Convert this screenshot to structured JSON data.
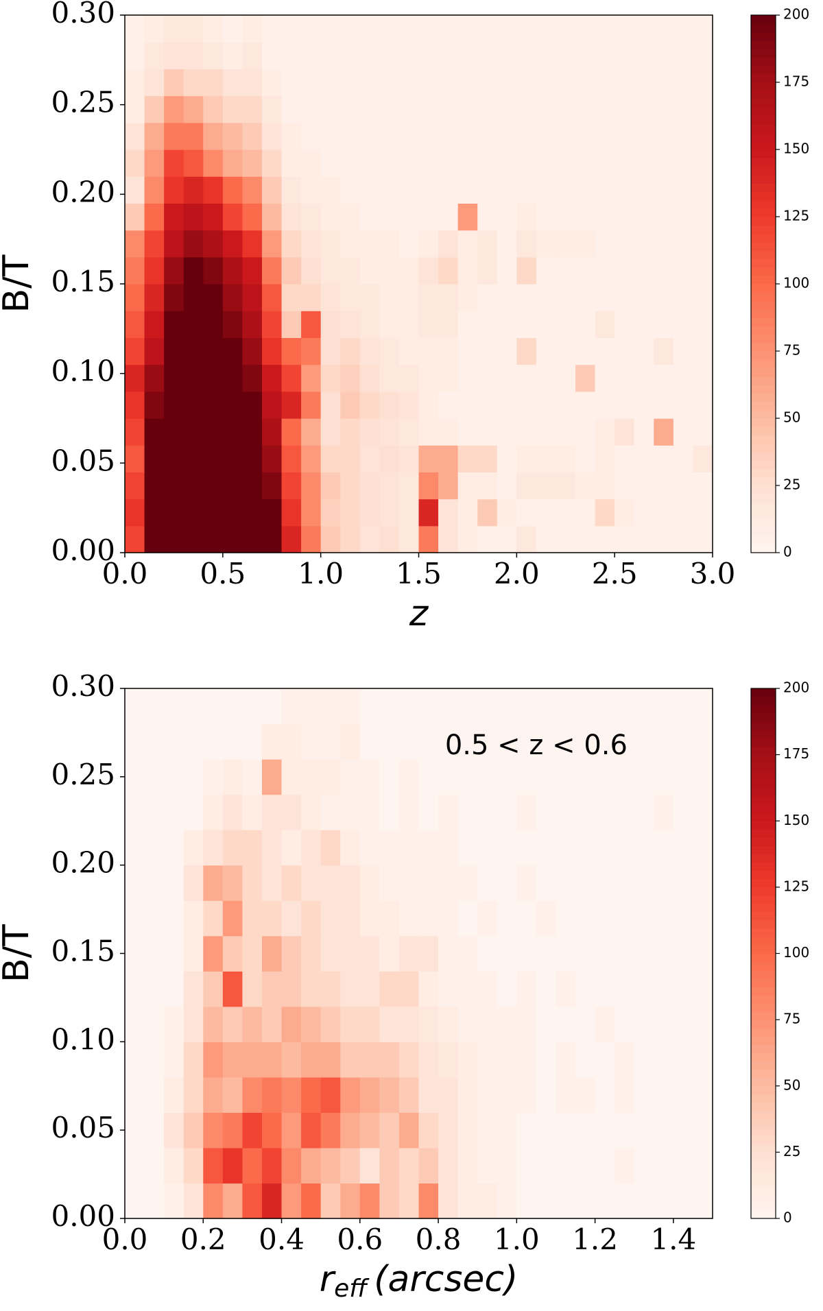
{
  "chart_data": [
    {
      "type": "heatmap",
      "xlabel": "z",
      "ylabel": "B/T",
      "xlim": [
        0.0,
        3.0
      ],
      "ylim": [
        0.0,
        0.3
      ],
      "xticks": [
        {
          "value": 0,
          "label": "0.0"
        },
        {
          "value": 0.5,
          "label": "0.5"
        },
        {
          "value": 1,
          "label": "1.0"
        },
        {
          "value": 1.5,
          "label": "1.5"
        },
        {
          "value": 2,
          "label": "2.0"
        },
        {
          "value": 2.5,
          "label": "2.5"
        },
        {
          "value": 3,
          "label": "3.0"
        }
      ],
      "yticks": [
        {
          "value": 0,
          "label": "0.00"
        },
        0.05,
        {
          "value": 0.1,
          "label": "0.10"
        },
        0.15,
        {
          "value": 0.2,
          "label": "0.20"
        },
        0.25,
        {
          "value": 0.3,
          "label": "0.30"
        }
      ],
      "clim": [
        0,
        200
      ],
      "cticks": [
        0,
        25,
        50,
        75,
        100,
        125,
        150,
        175,
        200
      ],
      "colormap": [
        "#fff5f0",
        "#fee0d2",
        "#fcbba1",
        "#fc9272",
        "#fb6a4a",
        "#ef3b2c",
        "#cb181d",
        "#a50f15",
        "#67000d"
      ],
      "z": [
        [
          120,
          200,
          200,
          200,
          200,
          200,
          200,
          200,
          140,
          90,
          40,
          30,
          20,
          25,
          15,
          90,
          20,
          10,
          5,
          5,
          15,
          5,
          5,
          5,
          5,
          5,
          5,
          5,
          5,
          5
        ],
        [
          130,
          200,
          200,
          200,
          200,
          200,
          200,
          200,
          130,
          80,
          35,
          30,
          25,
          20,
          15,
          140,
          20,
          10,
          40,
          10,
          5,
          5,
          5,
          5,
          30,
          10,
          5,
          5,
          5,
          5
        ],
        [
          120,
          200,
          200,
          200,
          200,
          200,
          200,
          190,
          120,
          80,
          40,
          30,
          25,
          20,
          15,
          80,
          60,
          10,
          10,
          5,
          15,
          15,
          15,
          10,
          10,
          5,
          5,
          5,
          5,
          5
        ],
        [
          110,
          200,
          200,
          200,
          200,
          200,
          200,
          180,
          110,
          70,
          30,
          30,
          20,
          25,
          20,
          60,
          60,
          30,
          30,
          5,
          10,
          10,
          10,
          5,
          10,
          5,
          5,
          5,
          5,
          15
        ],
        [
          120,
          200,
          200,
          200,
          200,
          200,
          200,
          170,
          100,
          60,
          25,
          30,
          25,
          20,
          15,
          10,
          10,
          5,
          5,
          5,
          5,
          5,
          5,
          5,
          10,
          20,
          5,
          60,
          5,
          5
        ],
        [
          130,
          190,
          200,
          200,
          200,
          200,
          200,
          160,
          140,
          90,
          25,
          40,
          30,
          25,
          20,
          10,
          5,
          5,
          5,
          5,
          5,
          5,
          5,
          5,
          5,
          5,
          5,
          5,
          5,
          5
        ],
        [
          140,
          180,
          200,
          200,
          200,
          200,
          190,
          150,
          120,
          70,
          30,
          35,
          25,
          15,
          15,
          10,
          10,
          5,
          5,
          5,
          5,
          5,
          5,
          40,
          5,
          5,
          5,
          5,
          5,
          5
        ],
        [
          120,
          160,
          200,
          200,
          200,
          200,
          180,
          130,
          100,
          90,
          25,
          30,
          20,
          15,
          10,
          10,
          10,
          5,
          5,
          5,
          30,
          5,
          5,
          5,
          5,
          5,
          5,
          15,
          5,
          5
        ],
        [
          110,
          150,
          200,
          200,
          200,
          190,
          170,
          120,
          40,
          110,
          25,
          20,
          15,
          10,
          10,
          15,
          15,
          5,
          5,
          5,
          5,
          5,
          5,
          5,
          15,
          5,
          5,
          5,
          5,
          5
        ],
        [
          100,
          140,
          190,
          200,
          200,
          180,
          160,
          110,
          30,
          30,
          20,
          15,
          15,
          10,
          10,
          15,
          15,
          10,
          5,
          5,
          5,
          5,
          5,
          5,
          5,
          5,
          5,
          5,
          5,
          5
        ],
        [
          90,
          130,
          180,
          200,
          190,
          170,
          150,
          90,
          40,
          25,
          15,
          15,
          10,
          10,
          10,
          20,
          30,
          10,
          15,
          5,
          30,
          5,
          5,
          5,
          5,
          5,
          5,
          5,
          5,
          5
        ],
        [
          80,
          120,
          160,
          180,
          170,
          150,
          130,
          70,
          30,
          20,
          15,
          10,
          10,
          10,
          5,
          10,
          20,
          10,
          15,
          5,
          15,
          10,
          10,
          10,
          5,
          5,
          5,
          5,
          5,
          5
        ],
        [
          40,
          100,
          150,
          160,
          150,
          120,
          100,
          50,
          20,
          15,
          10,
          10,
          5,
          5,
          5,
          5,
          5,
          70,
          5,
          5,
          10,
          5,
          5,
          5,
          5,
          5,
          5,
          5,
          5,
          5
        ],
        [
          20,
          80,
          130,
          140,
          130,
          100,
          80,
          40,
          15,
          10,
          10,
          5,
          5,
          5,
          5,
          5,
          5,
          5,
          5,
          5,
          5,
          5,
          5,
          5,
          5,
          5,
          5,
          5,
          5,
          5
        ],
        [
          30,
          70,
          120,
          110,
          80,
          60,
          50,
          30,
          10,
          10,
          5,
          5,
          5,
          5,
          5,
          5,
          5,
          5,
          5,
          5,
          5,
          5,
          5,
          5,
          5,
          5,
          5,
          5,
          5,
          5
        ],
        [
          20,
          60,
          90,
          90,
          60,
          50,
          40,
          20,
          10,
          5,
          5,
          5,
          5,
          5,
          5,
          5,
          5,
          5,
          5,
          5,
          5,
          5,
          5,
          5,
          5,
          5,
          5,
          5,
          5,
          5
        ],
        [
          10,
          40,
          70,
          60,
          40,
          30,
          30,
          15,
          5,
          5,
          5,
          5,
          5,
          5,
          5,
          5,
          5,
          5,
          5,
          5,
          5,
          5,
          5,
          5,
          5,
          5,
          5,
          5,
          5,
          5
        ],
        [
          10,
          20,
          40,
          30,
          30,
          20,
          20,
          10,
          5,
          5,
          5,
          5,
          5,
          5,
          5,
          5,
          5,
          5,
          5,
          5,
          5,
          5,
          5,
          5,
          5,
          5,
          5,
          5,
          5,
          5
        ],
        [
          5,
          15,
          20,
          20,
          15,
          10,
          15,
          5,
          5,
          5,
          5,
          5,
          5,
          5,
          5,
          5,
          5,
          5,
          5,
          5,
          5,
          5,
          5,
          5,
          5,
          5,
          5,
          5,
          5,
          5
        ],
        [
          5,
          10,
          15,
          15,
          10,
          5,
          10,
          5,
          5,
          5,
          5,
          5,
          5,
          5,
          5,
          5,
          5,
          5,
          5,
          5,
          5,
          5,
          5,
          5,
          5,
          5,
          5,
          5,
          5,
          5
        ]
      ]
    },
    {
      "type": "heatmap",
      "xlabel": {
        "main": "r",
        "sub": "eff",
        "rest": "(arcsec)"
      },
      "ylabel": "B/T",
      "annotation": "0.5 < z < 0.6",
      "xlim": [
        0.0,
        1.5
      ],
      "ylim": [
        0.0,
        0.3
      ],
      "xticks": [
        {
          "value": 0,
          "label": "0.0"
        },
        0.2,
        0.4,
        0.6,
        0.8,
        {
          "value": 1,
          "label": "1.0"
        },
        1.2,
        1.4
      ],
      "yticks": [
        {
          "value": 0,
          "label": "0.00"
        },
        0.05,
        {
          "value": 0.1,
          "label": "0.10"
        },
        0.15,
        {
          "value": 0.2,
          "label": "0.20"
        },
        0.25,
        {
          "value": 0.3,
          "label": "0.30"
        }
      ],
      "clim": [
        0,
        200
      ],
      "cticks": [
        0,
        25,
        50,
        75,
        100,
        125,
        150,
        175,
        200
      ],
      "colormap": [
        "#fff5f0",
        "#fee0d2",
        "#fcbba1",
        "#fc9272",
        "#fb6a4a",
        "#ef3b2c",
        "#cb181d",
        "#a50f15",
        "#67000d"
      ],
      "z": [
        [
          0,
          0,
          5,
          20,
          80,
          60,
          110,
          140,
          70,
          100,
          40,
          60,
          80,
          40,
          30,
          80,
          20,
          10,
          10,
          5,
          0,
          0,
          0,
          0,
          0,
          0,
          0,
          0,
          0,
          0
        ],
        [
          0,
          0,
          10,
          30,
          110,
          130,
          100,
          120,
          80,
          60,
          50,
          40,
          20,
          40,
          30,
          40,
          20,
          10,
          5,
          5,
          0,
          0,
          0,
          0,
          0,
          5,
          0,
          0,
          0,
          0
        ],
        [
          0,
          0,
          20,
          40,
          80,
          90,
          120,
          100,
          70,
          110,
          90,
          60,
          50,
          40,
          60,
          30,
          20,
          10,
          5,
          5,
          0,
          0,
          0,
          0,
          0,
          0,
          0,
          0,
          0,
          0
        ],
        [
          0,
          0,
          10,
          30,
          60,
          50,
          80,
          90,
          80,
          100,
          110,
          70,
          60,
          50,
          40,
          20,
          20,
          10,
          5,
          5,
          5,
          0,
          5,
          5,
          0,
          5,
          0,
          0,
          0,
          0
        ],
        [
          0,
          0,
          5,
          30,
          70,
          60,
          60,
          60,
          50,
          60,
          60,
          40,
          40,
          40,
          30,
          20,
          15,
          10,
          5,
          5,
          5,
          0,
          5,
          0,
          0,
          5,
          0,
          0,
          0,
          0
        ],
        [
          0,
          0,
          5,
          20,
          50,
          40,
          50,
          40,
          60,
          50,
          40,
          30,
          30,
          20,
          20,
          15,
          10,
          5,
          5,
          5,
          5,
          0,
          0,
          0,
          5,
          0,
          0,
          0,
          0,
          0
        ],
        [
          0,
          0,
          0,
          20,
          40,
          110,
          30,
          40,
          40,
          30,
          30,
          20,
          20,
          30,
          30,
          10,
          5,
          5,
          5,
          0,
          5,
          0,
          5,
          0,
          0,
          0,
          0,
          0,
          0,
          0
        ],
        [
          0,
          0,
          0,
          10,
          70,
          40,
          30,
          60,
          40,
          30,
          20,
          20,
          20,
          10,
          20,
          20,
          5,
          5,
          0,
          0,
          0,
          0,
          0,
          0,
          0,
          0,
          0,
          0,
          0,
          0
        ],
        [
          0,
          0,
          0,
          10,
          30,
          70,
          30,
          30,
          20,
          30,
          20,
          20,
          10,
          10,
          5,
          5,
          5,
          0,
          5,
          0,
          0,
          5,
          0,
          0,
          0,
          0,
          0,
          0,
          0,
          0
        ],
        [
          0,
          0,
          0,
          20,
          60,
          50,
          30,
          20,
          30,
          20,
          20,
          20,
          10,
          5,
          5,
          5,
          5,
          5,
          0,
          0,
          5,
          0,
          0,
          0,
          0,
          0,
          0,
          0,
          0,
          0
        ],
        [
          0,
          0,
          0,
          10,
          20,
          30,
          30,
          20,
          10,
          20,
          30,
          10,
          5,
          5,
          5,
          5,
          5,
          0,
          0,
          0,
          0,
          0,
          0,
          0,
          0,
          0,
          0,
          0,
          0,
          0
        ],
        [
          0,
          0,
          0,
          0,
          10,
          20,
          10,
          20,
          20,
          10,
          5,
          5,
          5,
          0,
          5,
          0,
          5,
          0,
          0,
          0,
          5,
          0,
          0,
          0,
          0,
          0,
          0,
          5,
          0,
          0
        ],
        [
          0,
          0,
          0,
          0,
          5,
          10,
          5,
          60,
          10,
          10,
          10,
          5,
          5,
          0,
          5,
          0,
          0,
          0,
          0,
          0,
          0,
          0,
          0,
          0,
          0,
          0,
          0,
          0,
          0,
          0
        ],
        [
          0,
          0,
          0,
          0,
          0,
          0,
          0,
          10,
          10,
          5,
          5,
          10,
          0,
          0,
          0,
          0,
          0,
          0,
          0,
          0,
          0,
          0,
          0,
          0,
          0,
          0,
          0,
          0,
          0,
          0
        ],
        [
          0,
          0,
          0,
          0,
          0,
          0,
          0,
          0,
          5,
          5,
          5,
          5,
          0,
          0,
          0,
          0,
          0,
          0,
          0,
          0,
          0,
          0,
          0,
          0,
          0,
          0,
          0,
          0,
          0,
          0
        ]
      ]
    }
  ]
}
